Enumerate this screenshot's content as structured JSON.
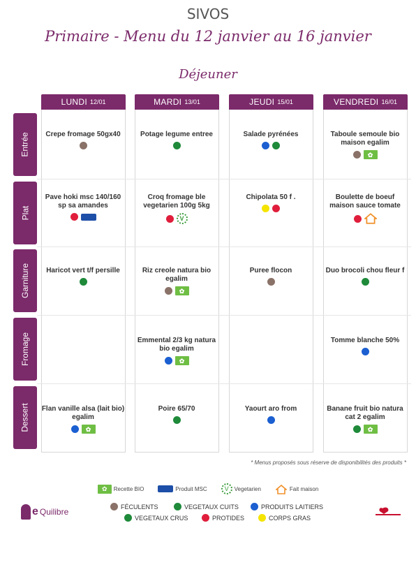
{
  "header": {
    "org": "SIVOS",
    "title": "Primaire - Menu du 12 janvier au 16 janvier",
    "meal": "Déjeuner"
  },
  "days": [
    {
      "name": "LUNDI",
      "date": "12/01"
    },
    {
      "name": "MARDI",
      "date": "13/01"
    },
    {
      "name": "JEUDI",
      "date": "15/01"
    },
    {
      "name": "VENDREDI",
      "date": "16/01"
    }
  ],
  "categories": [
    "Entrée",
    "Plat",
    "Garniture",
    "Fromage",
    "Dessert"
  ],
  "menu": {
    "entree": [
      {
        "text": "Crepe fromage 50gx40",
        "marks": [
          "brown"
        ]
      },
      {
        "text": "Potage legume entree",
        "marks": [
          "green"
        ]
      },
      {
        "text": "Salade pyrénées",
        "marks": [
          "blue",
          "green"
        ]
      },
      {
        "text": "Taboule semoule bio maison egalim",
        "marks": [
          "brown",
          "bio"
        ]
      }
    ],
    "plat": [
      {
        "text": "Pave hoki msc 140/160 sp sa amandes",
        "marks": [
          "red",
          "msc"
        ]
      },
      {
        "text": "Croq fromage ble vegetarien 100g 5kg",
        "marks": [
          "red",
          "veg"
        ]
      },
      {
        "text": "Chipolata 50 f .",
        "marks": [
          "yellow",
          "red"
        ]
      },
      {
        "text": "Boulette de boeuf maison sauce tomate",
        "marks": [
          "red",
          "house"
        ]
      }
    ],
    "garniture": [
      {
        "text": "Haricot vert t/f persille",
        "marks": [
          "green"
        ]
      },
      {
        "text": "Riz creole natura bio egalim",
        "marks": [
          "brown",
          "bio"
        ]
      },
      {
        "text": "Puree flocon",
        "marks": [
          "brown"
        ]
      },
      {
        "text": "Duo brocoli chou fleur f",
        "marks": [
          "green"
        ]
      }
    ],
    "fromage": [
      {
        "text": "",
        "marks": []
      },
      {
        "text": "Emmental 2/3 kg natura bio egalim",
        "marks": [
          "blue",
          "bio"
        ]
      },
      {
        "text": "",
        "marks": []
      },
      {
        "text": "Tomme blanche 50%",
        "marks": [
          "blue"
        ]
      }
    ],
    "dessert": [
      {
        "text": "Flan vanille alsa (lait bio) egalim",
        "marks": [
          "blue",
          "bio"
        ]
      },
      {
        "text": "Poire 65/70",
        "marks": [
          "green"
        ]
      },
      {
        "text": "Yaourt aro from",
        "marks": [
          "blue"
        ]
      },
      {
        "text": "Banane fruit bio natura cat 2 egalim",
        "marks": [
          "green",
          "bio"
        ]
      }
    ]
  },
  "footer": {
    "note": "* Menus proposés sous réserve de disponibilités des produits *",
    "labels": {
      "bio": "Recette BIO",
      "msc": "Produit MSC",
      "veg": "Vegetarien",
      "house": "Fait maison"
    },
    "groups": {
      "feculents": "FÉCULENTS",
      "veg_cuits": "VEGETAUX CUITS",
      "laitiers": "PRODUITS LAITIERS",
      "veg_crus": "VEGETAUX CRUS",
      "protides": "PROTIDES",
      "corps_gras": "CORPS GRAS"
    },
    "logo_left": "Quilibre",
    "logo_left_letter": "e"
  },
  "colors": {
    "accent": "#7b2a6a",
    "feculents": "#8a7268",
    "vegetaux": "#1e8a3a",
    "laitiers": "#1b5fd1",
    "protides": "#e01e3c",
    "corps_gras": "#f4e400",
    "bio": "#6fbe44",
    "msc": "#1e4fa8"
  },
  "icons": {
    "bio": "leaf-icon",
    "msc": "fish-icon",
    "veg": "vegetarian-icon",
    "house": "house-icon"
  }
}
